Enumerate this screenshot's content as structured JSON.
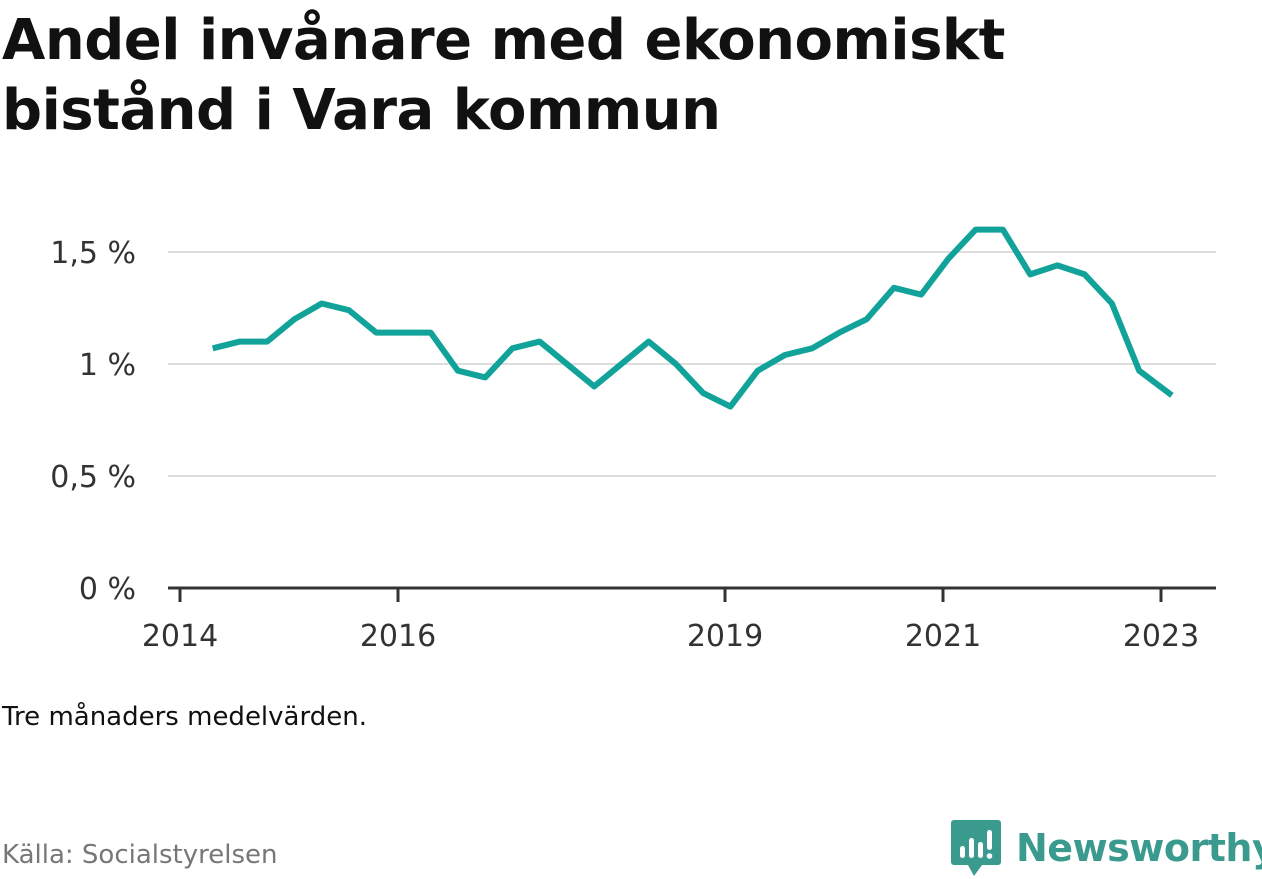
{
  "title": "Andel invånare med ekonomiskt bistånd i Vara kommun",
  "note": "Tre månaders medelvärden.",
  "source": "Källa: Socialstyrelsen",
  "brand": {
    "name": "Newsworthy",
    "icon": "newsworthy-logo-icon",
    "color": "#3a9a8e"
  },
  "colors": {
    "line": "#11a39a",
    "grid": "#dddddd",
    "axis": "#333333"
  },
  "chart_data": {
    "type": "line",
    "title": "Andel invånare med ekonomiskt bistånd i Vara kommun",
    "xlabel": "",
    "ylabel": "",
    "y_ticks": [
      {
        "value": 0,
        "label": "0 %"
      },
      {
        "value": 0.5,
        "label": "0,5 %"
      },
      {
        "value": 1.0,
        "label": "1 %"
      },
      {
        "value": 1.5,
        "label": "1,5 %"
      }
    ],
    "x_ticks": [
      "2014",
      "2016",
      "2019",
      "2021",
      "2023"
    ],
    "x_range": [
      2014.0,
      2023.4
    ],
    "ylim": [
      0,
      1.65
    ],
    "grid": true,
    "series": [
      {
        "x": [
          2014.3,
          2014.55,
          2014.8,
          2015.05,
          2015.3,
          2015.55,
          2015.8,
          2016.05,
          2016.3,
          2016.55,
          2016.8,
          2017.05,
          2017.3,
          2017.55,
          2017.8,
          2018.05,
          2018.3,
          2018.55,
          2018.8,
          2019.05,
          2019.3,
          2019.55,
          2019.8,
          2020.05,
          2020.3,
          2020.55,
          2020.8,
          2021.05,
          2021.3,
          2021.55,
          2021.8,
          2022.05,
          2022.3,
          2022.55,
          2022.8,
          2023.1
        ],
        "values": [
          1.07,
          1.1,
          1.1,
          1.2,
          1.27,
          1.24,
          1.14,
          1.14,
          1.14,
          0.97,
          0.94,
          1.07,
          1.1,
          1.0,
          0.9,
          1.0,
          1.1,
          1.0,
          0.87,
          0.81,
          0.97,
          1.04,
          1.07,
          1.14,
          1.2,
          1.34,
          1.31,
          1.47,
          1.6,
          1.6,
          1.4,
          1.44,
          1.4,
          1.27,
          0.97,
          0.86
        ]
      }
    ]
  }
}
